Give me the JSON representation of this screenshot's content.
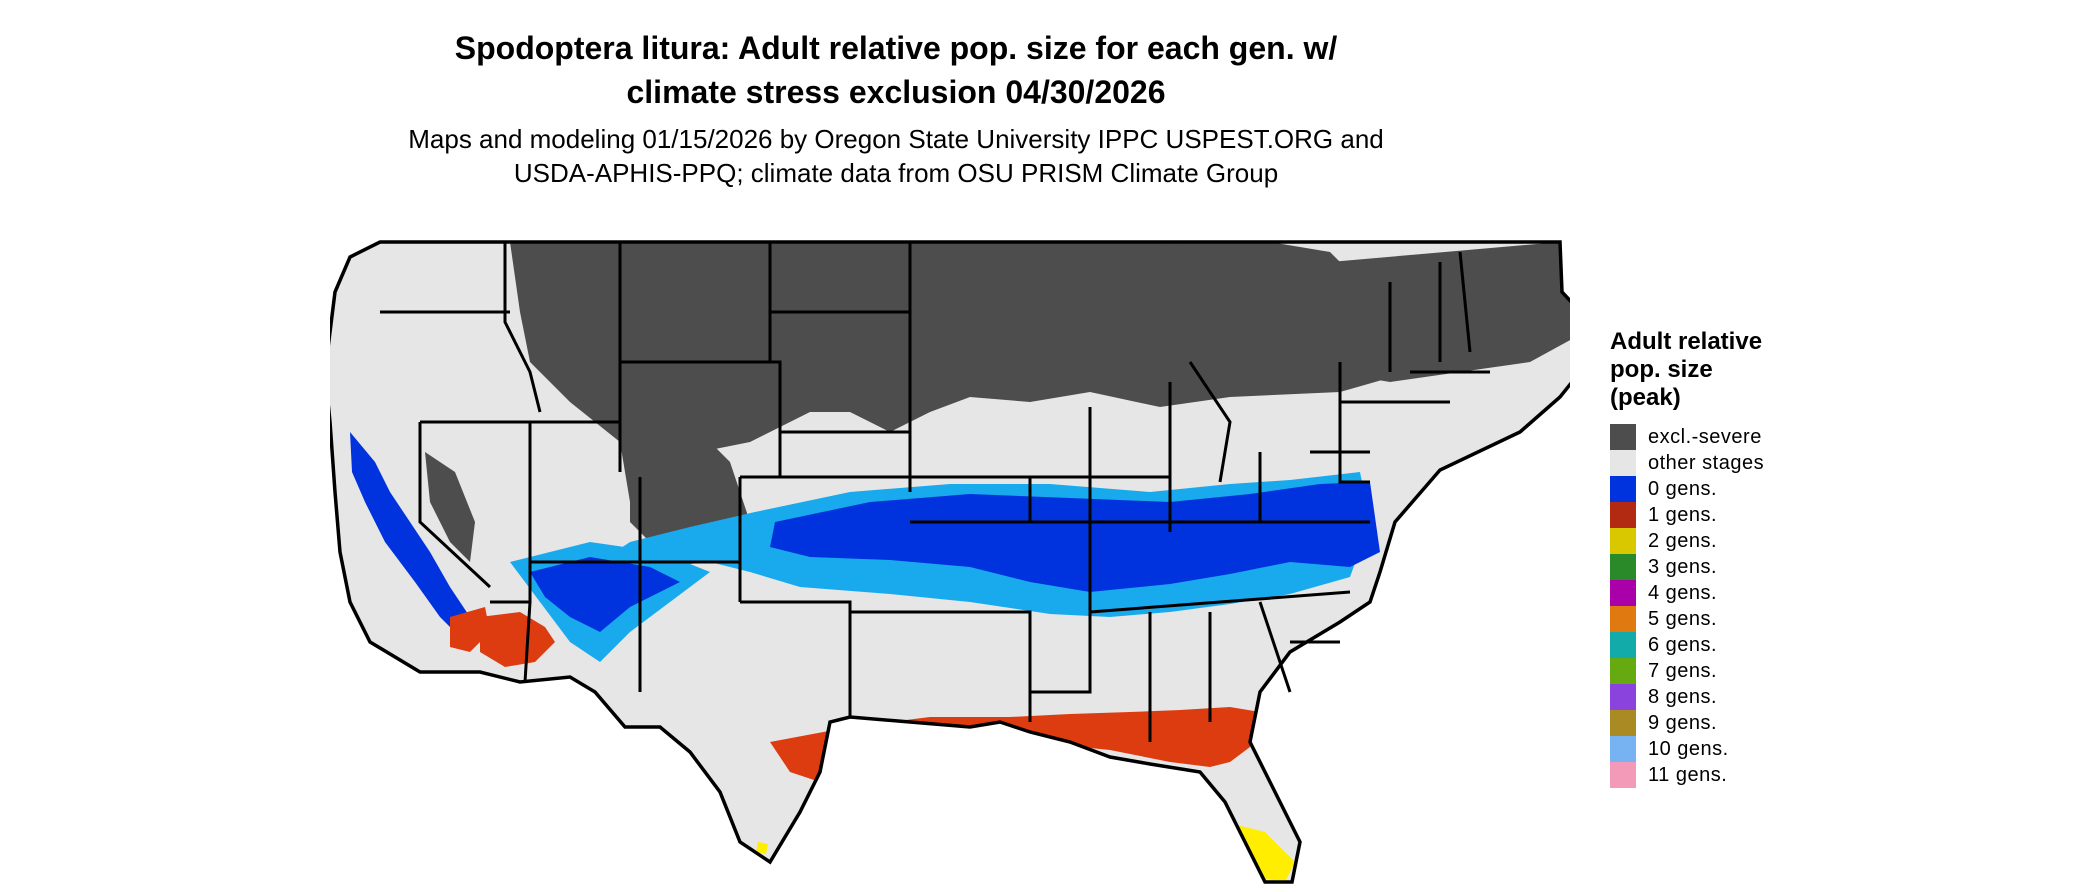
{
  "title_line1": "Spodoptera litura: Adult relative pop. size for each gen. w/",
  "title_line2": "climate stress exclusion 04/30/2026",
  "subtitle_line1": "Maps and modeling 01/15/2026 by Oregon State University IPPC USPEST.ORG and",
  "subtitle_line2": "USDA-APHIS-PPQ; climate data from OSU PRISM Climate Group",
  "legend": {
    "title_line1": "Adult relative",
    "title_line2": "pop. size",
    "title_line3": "(peak)",
    "items": [
      {
        "label": "excl.-severe",
        "color": "#4d4d4d"
      },
      {
        "label": "other stages",
        "color": "#e6e6e6"
      },
      {
        "label": "0 gens.",
        "color": "#0033dd"
      },
      {
        "label": "1 gens.",
        "color": "#b22a12"
      },
      {
        "label": "2 gens.",
        "color": "#d9c800"
      },
      {
        "label": "3 gens.",
        "color": "#2a8a2a"
      },
      {
        "label": "4 gens.",
        "color": "#aa00aa"
      },
      {
        "label": "5 gens.",
        "color": "#e07a10"
      },
      {
        "label": "6 gens.",
        "color": "#13aaaa"
      },
      {
        "label": "7 gens.",
        "color": "#66aa12"
      },
      {
        "label": "8 gens.",
        "color": "#8a44dd"
      },
      {
        "label": "9 gens.",
        "color": "#aa8a22"
      },
      {
        "label": "10 gens.",
        "color": "#77b2f2"
      },
      {
        "label": "11 gens.",
        "color": "#f29ab8"
      }
    ]
  },
  "map_colors": {
    "background": "#e6e6e6",
    "excluded": "#4d4d4d",
    "gen0_dark": "#0033dd",
    "gen0_light": "#19aaee",
    "gen1": "#dd3c10",
    "gen2": "#ffee00",
    "border": "#000000"
  }
}
